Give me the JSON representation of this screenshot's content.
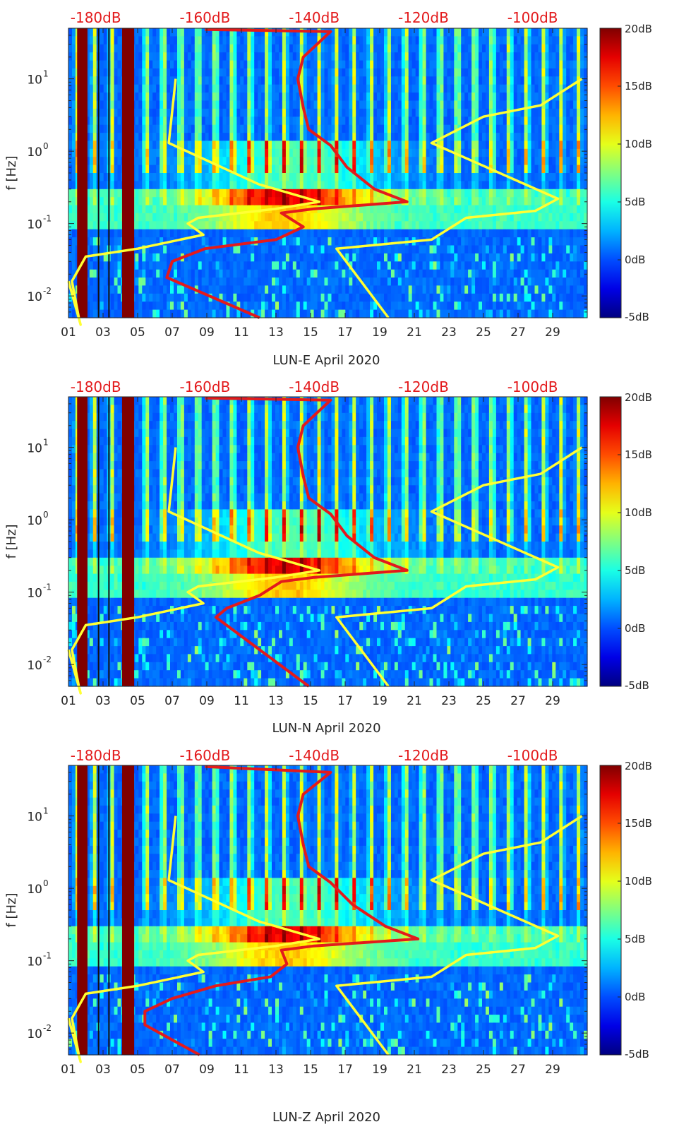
{
  "chart_data": [
    {
      "type": "heatmap",
      "title": "",
      "xlabel": "LUN-E April 2020",
      "ylabel": "f [Hz]",
      "x_tick_labels": [
        "01",
        "03",
        "05",
        "07",
        "09",
        "11",
        "13",
        "15",
        "17",
        "19",
        "21",
        "23",
        "25",
        "27",
        "29"
      ],
      "x_days": [
        1,
        3,
        5,
        7,
        9,
        11,
        13,
        15,
        17,
        19,
        21,
        23,
        25,
        27,
        29
      ],
      "xlim": [
        1,
        31
      ],
      "yscale": "log",
      "ylim": [
        0.005,
        50
      ],
      "y_ticks": [
        0.01,
        0.1,
        1,
        10
      ],
      "y_tick_bases": [
        "10",
        "10",
        "10",
        "10"
      ],
      "y_tick_exps": [
        "-2",
        "-1",
        "0",
        "1"
      ],
      "top_axis_labels": [
        "-180dB",
        "-160dB",
        "-140dB",
        "-120dB",
        "-100dB"
      ],
      "top_axis_values": [
        -180,
        -160,
        -140,
        -120,
        -100
      ],
      "top_axis_range": [
        -185,
        -90
      ],
      "colorbar_labels": [
        "20dB",
        "15dB",
        "10dB",
        "5dB",
        "0dB",
        "-5dB"
      ],
      "colorbar_values": [
        20,
        15,
        10,
        5,
        0,
        -5
      ],
      "clim": [
        -5,
        20
      ],
      "lines": [
        {
          "name": "yellow envelope 1",
          "color": "#ffff33",
          "axis": "day",
          "points": [
            [
              1,
              0.016
            ],
            [
              1.7,
              0.004
            ],
            [
              1.6,
              0.005
            ],
            [
              1.2,
              0.016
            ],
            [
              2,
              0.035
            ],
            [
              5,
              0.045
            ],
            [
              8.8,
              0.07
            ],
            [
              7.9,
              0.1
            ],
            [
              8.5,
              0.12
            ],
            [
              13,
              0.16
            ],
            [
              15.5,
              0.2
            ],
            [
              12,
              0.35
            ],
            [
              6.8,
              1.3
            ],
            [
              7.2,
              10
            ]
          ]
        },
        {
          "name": "yellow envelope 2",
          "color": "#ffff33",
          "axis": "day",
          "points": [
            [
              19.5,
              0.005
            ],
            [
              16.5,
              0.045
            ],
            [
              22,
              0.06
            ],
            [
              24,
              0.12
            ],
            [
              28,
              0.15
            ],
            [
              29.3,
              0.22
            ],
            [
              22,
              1.3
            ],
            [
              25,
              3
            ],
            [
              28.3,
              4.3
            ],
            [
              30.7,
              10
            ]
          ]
        },
        {
          "name": "red noise model",
          "color": "#e31a1c",
          "axis": "dB",
          "points": [
            [
              -150,
              0.005
            ],
            [
              -167,
              0.018
            ],
            [
              -166,
              0.03
            ],
            [
              -160,
              0.045
            ],
            [
              -147,
              0.06
            ],
            [
              -142,
              0.09
            ],
            [
              -146,
              0.14
            ],
            [
              -140,
              0.16
            ],
            [
              -123,
              0.2
            ],
            [
              -129,
              0.3
            ],
            [
              -134,
              0.6
            ],
            [
              -137,
              1.2
            ],
            [
              -141,
              2
            ],
            [
              -142,
              4
            ],
            [
              -143,
              10
            ],
            [
              -142,
              20
            ],
            [
              -137,
              45
            ],
            [
              -160,
              48
            ]
          ]
        }
      ]
    },
    {
      "type": "heatmap",
      "title": "",
      "xlabel": "LUN-N April 2020",
      "ylabel": "f [Hz]",
      "x_tick_labels": [
        "01",
        "03",
        "05",
        "07",
        "09",
        "11",
        "13",
        "15",
        "17",
        "19",
        "21",
        "23",
        "25",
        "27",
        "29"
      ],
      "x_days": [
        1,
        3,
        5,
        7,
        9,
        11,
        13,
        15,
        17,
        19,
        21,
        23,
        25,
        27,
        29
      ],
      "xlim": [
        1,
        31
      ],
      "yscale": "log",
      "ylim": [
        0.005,
        50
      ],
      "y_ticks": [
        0.01,
        0.1,
        1,
        10
      ],
      "y_tick_bases": [
        "10",
        "10",
        "10",
        "10"
      ],
      "y_tick_exps": [
        "-2",
        "-1",
        "0",
        "1"
      ],
      "top_axis_labels": [
        "-180dB",
        "-160dB",
        "-140dB",
        "-120dB",
        "-100dB"
      ],
      "top_axis_values": [
        -180,
        -160,
        -140,
        -120,
        -100
      ],
      "top_axis_range": [
        -185,
        -90
      ],
      "colorbar_labels": [
        "20dB",
        "15dB",
        "10dB",
        "5dB",
        "0dB",
        "-5dB"
      ],
      "colorbar_values": [
        20,
        15,
        10,
        5,
        0,
        -5
      ],
      "clim": [
        -5,
        20
      ],
      "lines": [
        {
          "name": "yellow envelope 1",
          "color": "#ffff33",
          "axis": "day",
          "points": [
            [
              1,
              0.016
            ],
            [
              1.7,
              0.004
            ],
            [
              1.6,
              0.005
            ],
            [
              1.2,
              0.016
            ],
            [
              2,
              0.035
            ],
            [
              5,
              0.045
            ],
            [
              8.8,
              0.07
            ],
            [
              7.9,
              0.1
            ],
            [
              8.5,
              0.12
            ],
            [
              13,
              0.16
            ],
            [
              15.5,
              0.2
            ],
            [
              12,
              0.35
            ],
            [
              6.8,
              1.3
            ],
            [
              7.2,
              10
            ]
          ]
        },
        {
          "name": "yellow envelope 2",
          "color": "#ffff33",
          "axis": "day",
          "points": [
            [
              19.5,
              0.005
            ],
            [
              16.5,
              0.045
            ],
            [
              22,
              0.06
            ],
            [
              24,
              0.12
            ],
            [
              28,
              0.15
            ],
            [
              29.3,
              0.22
            ],
            [
              22,
              1.3
            ],
            [
              25,
              3
            ],
            [
              28.3,
              4.3
            ],
            [
              30.7,
              10
            ]
          ]
        },
        {
          "name": "red noise model",
          "color": "#e31a1c",
          "axis": "dB",
          "points": [
            [
              -141,
              0.005
            ],
            [
              -158,
              0.045
            ],
            [
              -156,
              0.06
            ],
            [
              -150,
              0.09
            ],
            [
              -146,
              0.14
            ],
            [
              -140,
              0.16
            ],
            [
              -123,
              0.2
            ],
            [
              -129,
              0.3
            ],
            [
              -134,
              0.6
            ],
            [
              -137,
              1.2
            ],
            [
              -141,
              2
            ],
            [
              -142,
              4
            ],
            [
              -143,
              10
            ],
            [
              -142,
              20
            ],
            [
              -137,
              45
            ],
            [
              -160,
              48
            ]
          ]
        }
      ]
    },
    {
      "type": "heatmap",
      "title": "",
      "xlabel": "LUN-Z April 2020",
      "ylabel": "f [Hz]",
      "x_tick_labels": [
        "01",
        "03",
        "05",
        "07",
        "09",
        "11",
        "13",
        "15",
        "17",
        "19",
        "21",
        "23",
        "25",
        "27",
        "29"
      ],
      "x_days": [
        1,
        3,
        5,
        7,
        9,
        11,
        13,
        15,
        17,
        19,
        21,
        23,
        25,
        27,
        29
      ],
      "xlim": [
        1,
        31
      ],
      "yscale": "log",
      "ylim": [
        0.005,
        50
      ],
      "y_ticks": [
        0.01,
        0.1,
        1,
        10
      ],
      "y_tick_bases": [
        "10",
        "10",
        "10",
        "10"
      ],
      "y_tick_exps": [
        "-2",
        "-1",
        "0",
        "1"
      ],
      "top_axis_labels": [
        "-180dB",
        "-160dB",
        "-140dB",
        "-120dB",
        "-100dB"
      ],
      "top_axis_values": [
        -180,
        -160,
        -140,
        -120,
        -100
      ],
      "top_axis_range": [
        -185,
        -90
      ],
      "colorbar_labels": [
        "20dB",
        "15dB",
        "10dB",
        "5dB",
        "0dB",
        "-5dB"
      ],
      "colorbar_values": [
        20,
        15,
        10,
        5,
        0,
        -5
      ],
      "clim": [
        -5,
        20
      ],
      "lines": [
        {
          "name": "yellow envelope 1",
          "color": "#ffff33",
          "axis": "day",
          "points": [
            [
              1,
              0.016
            ],
            [
              1.7,
              0.004
            ],
            [
              1.6,
              0.005
            ],
            [
              1.2,
              0.016
            ],
            [
              2,
              0.035
            ],
            [
              5,
              0.045
            ],
            [
              8.8,
              0.07
            ],
            [
              7.9,
              0.1
            ],
            [
              8.5,
              0.12
            ],
            [
              13,
              0.16
            ],
            [
              15.5,
              0.2
            ],
            [
              12,
              0.35
            ],
            [
              6.8,
              1.3
            ],
            [
              7.2,
              10
            ]
          ]
        },
        {
          "name": "yellow envelope 2",
          "color": "#ffff33",
          "axis": "day",
          "points": [
            [
              19.5,
              0.005
            ],
            [
              16.5,
              0.045
            ],
            [
              22,
              0.06
            ],
            [
              24,
              0.12
            ],
            [
              28,
              0.15
            ],
            [
              29.3,
              0.22
            ],
            [
              22,
              1.3
            ],
            [
              25,
              3
            ],
            [
              28.3,
              4.3
            ],
            [
              30.7,
              10
            ]
          ]
        },
        {
          "name": "red noise model",
          "color": "#e31a1c",
          "axis": "dB",
          "points": [
            [
              -161,
              0.005
            ],
            [
              -171,
              0.013
            ],
            [
              -171,
              0.02
            ],
            [
              -166,
              0.03
            ],
            [
              -158,
              0.045
            ],
            [
              -148,
              0.06
            ],
            [
              -145,
              0.09
            ],
            [
              -146,
              0.14
            ],
            [
              -140,
              0.16
            ],
            [
              -121,
              0.2
            ],
            [
              -127,
              0.3
            ],
            [
              -133,
              0.6
            ],
            [
              -137,
              1.2
            ],
            [
              -141,
              2
            ],
            [
              -142,
              4
            ],
            [
              -143,
              10
            ],
            [
              -142,
              20
            ],
            [
              -137,
              40
            ],
            [
              -160,
              48
            ]
          ]
        }
      ]
    }
  ]
}
